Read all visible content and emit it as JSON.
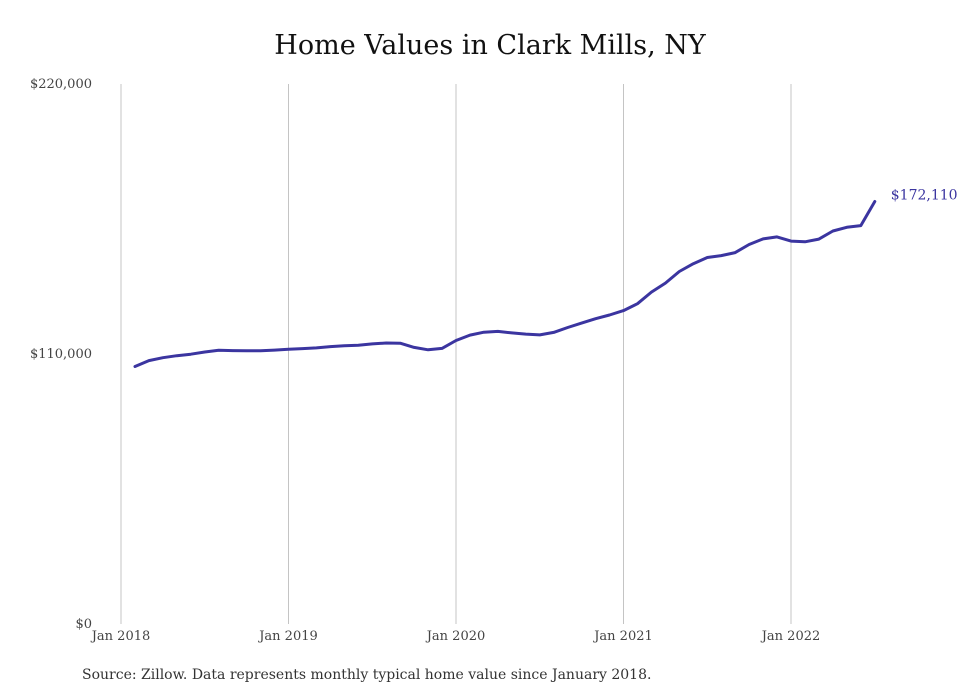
{
  "chart_data": {
    "type": "line",
    "title": "Home Values in Clark Mills, NY",
    "xlabel": "",
    "ylabel": "",
    "source": "Source: Zillow. Data represents monthly typical home value since January 2018.",
    "ylim": [
      0,
      220000
    ],
    "y_ticks": [
      {
        "value": 0,
        "label": "$0"
      },
      {
        "value": 110000,
        "label": "$110,000"
      },
      {
        "value": 220000,
        "label": "$220,000"
      }
    ],
    "x_ticks": [
      {
        "value": "2018-01",
        "label": "Jan 2018"
      },
      {
        "value": "2019-01",
        "label": "Jan 2019"
      },
      {
        "value": "2020-01",
        "label": "Jan 2020"
      },
      {
        "value": "2021-01",
        "label": "Jan 2021"
      },
      {
        "value": "2022-01",
        "label": "Jan 2022"
      }
    ],
    "grid": {
      "vertical": true,
      "horizontal": false
    },
    "line_color": "#3b35a0",
    "end_label": "$172,110",
    "series": [
      {
        "x": [
          "2018-02",
          "2018-03",
          "2018-04",
          "2018-05",
          "2018-06",
          "2018-07",
          "2018-08",
          "2018-09",
          "2018-10",
          "2018-11",
          "2018-12",
          "2019-01",
          "2019-02",
          "2019-03",
          "2019-04",
          "2019-05",
          "2019-06",
          "2019-07",
          "2019-08",
          "2019-09",
          "2019-10",
          "2019-11",
          "2019-12",
          "2020-01",
          "2020-02",
          "2020-03",
          "2020-04",
          "2020-05",
          "2020-06",
          "2020-07",
          "2020-08",
          "2020-09",
          "2020-10",
          "2020-11",
          "2020-12",
          "2021-01",
          "2021-02",
          "2021-03",
          "2021-04",
          "2021-05",
          "2021-06",
          "2021-07",
          "2021-08",
          "2021-09",
          "2021-10",
          "2021-11",
          "2021-12",
          "2022-01",
          "2022-02",
          "2022-03",
          "2022-04",
          "2022-05",
          "2022-06",
          "2022-07"
        ],
        "values": [
          104900,
          107300,
          108500,
          109300,
          109900,
          110800,
          111500,
          111400,
          111300,
          111300,
          111600,
          111900,
          112200,
          112500,
          113000,
          113400,
          113600,
          114100,
          114500,
          114400,
          112700,
          111700,
          112300,
          115500,
          117700,
          118900,
          119200,
          118600,
          118100,
          117800,
          118800,
          120800,
          122600,
          124400,
          125900,
          127700,
          130500,
          135200,
          138900,
          143600,
          146800,
          149300,
          150100,
          151300,
          154600,
          156900,
          157700,
          156000,
          155700,
          156800,
          160100,
          161600,
          162300,
          172110
        ]
      }
    ]
  }
}
